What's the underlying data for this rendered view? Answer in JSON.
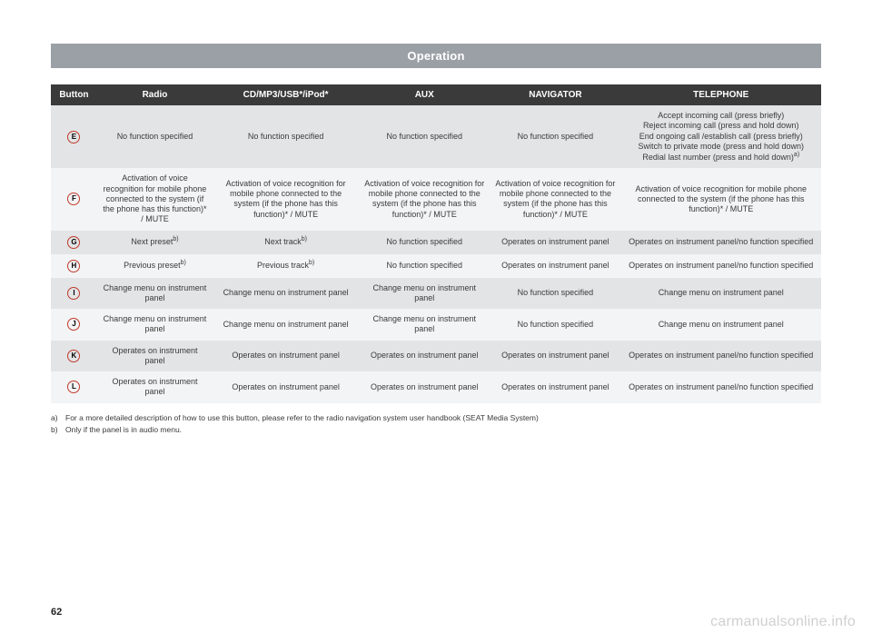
{
  "titleBar": "Operation",
  "columns": [
    "Button",
    "Radio",
    "CD/MP3/USB*/iPod*",
    "AUX",
    "NAVIGATOR",
    "TELEPHONE"
  ],
  "buttons": [
    "E",
    "F",
    "G",
    "H",
    "I",
    "J",
    "K",
    "L"
  ],
  "rows": [
    {
      "radio": "No function specified",
      "cd": "No function specified",
      "aux": "No function specified",
      "nav": "No function specified",
      "tel_lines": [
        "Accept incoming call (press briefly)",
        "Reject incoming call (press and hold down)",
        "End ongoing call /establish call (press briefly)",
        "Switch to private mode (press and hold down)",
        "Redial last number (press and hold down)"
      ],
      "tel_sup": "a)"
    },
    {
      "radio": "Activation of voice recognition for mobile phone connected to the system (if the phone has this function)* / MUTE",
      "cd": "Activation of voice recognition for mobile phone connected to the system (if the phone has this function)* / MUTE",
      "aux": "Activation of voice recognition for mobile phone connected to the system (if the phone has this function)* / MUTE",
      "nav": "Activation of voice recognition for mobile phone connected to the system (if the phone has this function)* / MUTE",
      "tel": "Activation of voice recognition for mobile phone connected to the system (if the phone has this function)* / MUTE"
    },
    {
      "radio": "Next preset",
      "radio_sup": "b)",
      "cd": "Next track",
      "cd_sup": "b)",
      "aux": "No function specified",
      "nav": "Operates on instrument panel",
      "tel": "Operates on instrument panel/no function specified"
    },
    {
      "radio": "Previous preset",
      "radio_sup": "b)",
      "cd": "Previous track",
      "cd_sup": "b)",
      "aux": "No function specified",
      "nav": "Operates on instrument panel",
      "tel": "Operates on instrument panel/no function specified"
    },
    {
      "radio": "Change menu on instrument panel",
      "cd": "Change menu on instrument panel",
      "aux": "Change menu on instrument panel",
      "nav": "No function specified",
      "tel": "Change menu on instrument panel"
    },
    {
      "radio": "Change menu on instrument panel",
      "cd": "Change menu on instrument panel",
      "aux": "Change menu on instrument panel",
      "nav": "No function specified",
      "tel": "Change menu on instrument panel"
    },
    {
      "radio": "Operates on instrument panel",
      "cd": "Operates on instrument panel",
      "aux": "Operates on instrument panel",
      "nav": "Operates on instrument panel",
      "tel": "Operates on instrument panel/no function specified"
    },
    {
      "radio": "Operates on instrument panel",
      "cd": "Operates on instrument panel",
      "aux": "Operates on instrument panel",
      "nav": "Operates on instrument panel",
      "tel": "Operates on instrument panel/no function specified"
    }
  ],
  "footnotes": [
    {
      "label": "a)",
      "text": "For a more detailed description of how to use this button, please refer to the radio navigation system user handbook (SEAT Media System)"
    },
    {
      "label": "b)",
      "text": "Only if the panel is in audio menu."
    }
  ],
  "pageNumber": "62",
  "watermark": "carmanualsonline.info",
  "colors": {
    "titleBg": "#9aa0a6",
    "headerBg": "#3a3a3a",
    "rowAlt": "#e2e4e6",
    "rowPlain": "#f3f4f5",
    "circleBorder": "#c0392b"
  }
}
